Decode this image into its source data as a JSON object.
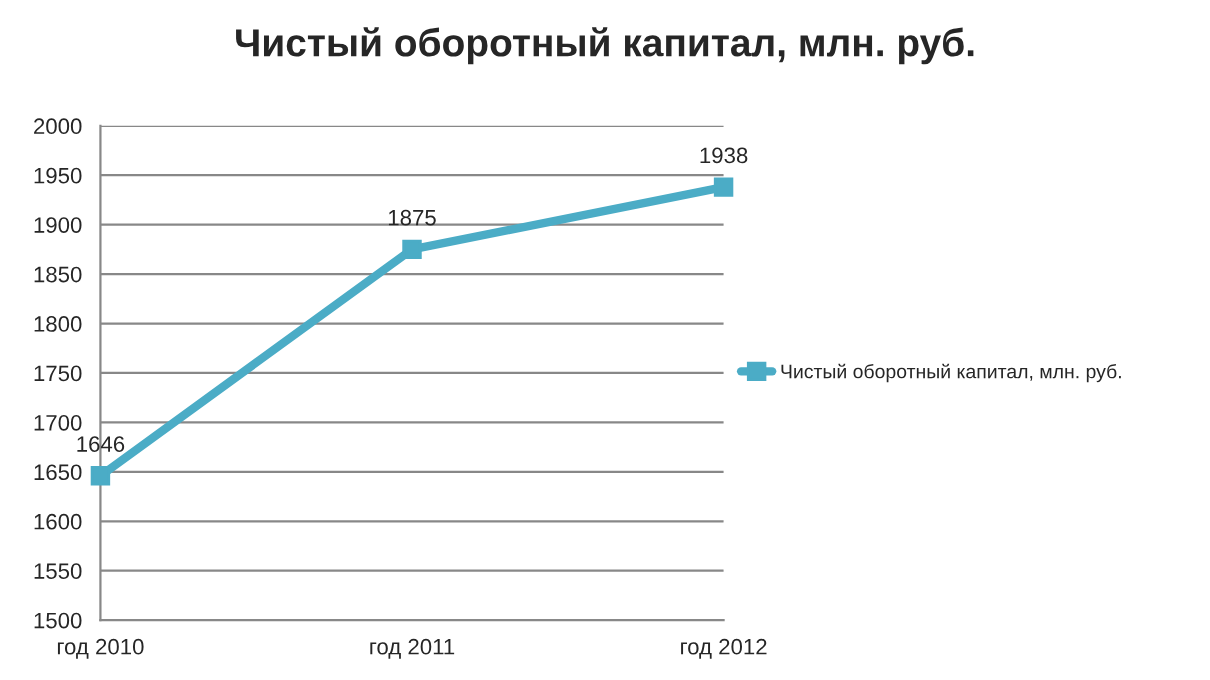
{
  "chart_data": {
    "type": "line",
    "title": "Чистый оборотный капитал, млн. руб.",
    "categories": [
      "год 2010",
      "год 2011",
      "год 2012"
    ],
    "series": [
      {
        "name": "Чистый оборотный капитал, млн. руб.",
        "color": "#4bacc6",
        "values": [
          1646,
          1875,
          1938
        ]
      }
    ],
    "ylim": [
      1500,
      2000
    ],
    "yticks": [
      1500,
      1550,
      1600,
      1650,
      1700,
      1750,
      1800,
      1850,
      1900,
      1950,
      2000
    ],
    "grid": "y",
    "legend": "right",
    "marker": "square",
    "line_style": "solid",
    "data_labels": true
  }
}
